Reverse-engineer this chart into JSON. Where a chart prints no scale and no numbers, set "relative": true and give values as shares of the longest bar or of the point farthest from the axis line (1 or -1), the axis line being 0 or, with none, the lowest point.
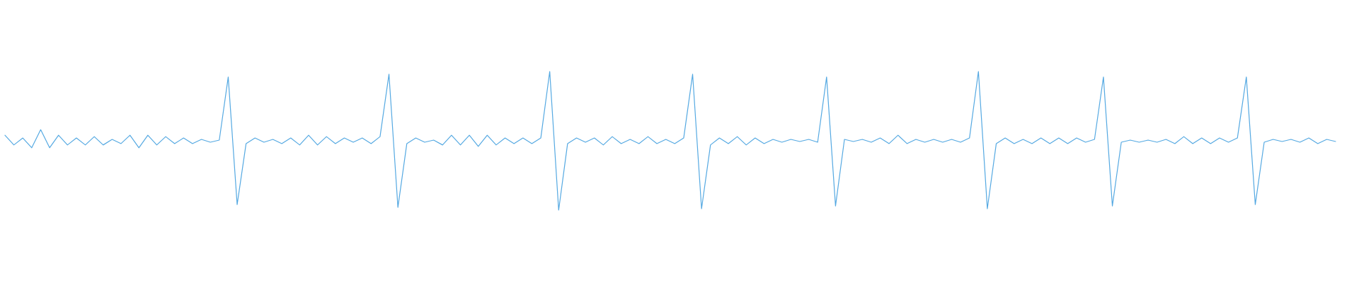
{
  "chart_data": {
    "type": "line",
    "relative": true,
    "color": "#55a9e2",
    "categories": [
      null,
      null,
      null,
      null,
      null,
      null,
      null,
      null,
      null,
      null,
      null,
      null,
      null,
      null,
      null,
      null,
      null,
      null,
      null,
      null,
      null,
      null,
      null,
      null,
      null,
      null,
      null,
      null,
      null,
      null,
      null,
      null,
      null,
      null,
      null,
      null,
      null,
      null,
      null,
      null,
      null,
      null,
      null,
      null,
      null,
      null,
      null,
      null,
      null,
      null,
      null,
      null,
      null,
      null,
      null,
      null,
      null,
      null,
      null,
      null,
      null,
      null,
      null,
      null,
      null,
      null,
      null,
      null,
      null,
      null,
      null,
      null,
      null,
      null,
      null,
      null,
      null,
      null,
      null,
      null,
      null,
      null,
      null,
      null,
      null,
      null,
      null,
      null,
      null,
      null,
      null,
      null,
      null,
      null,
      null,
      null,
      null,
      null,
      null,
      null,
      null,
      null,
      null,
      null,
      null,
      null,
      null,
      null,
      null,
      null,
      null,
      null,
      null,
      null,
      null,
      null,
      null,
      null,
      null,
      null,
      null,
      null,
      null,
      null,
      null,
      null,
      null,
      null,
      null,
      null,
      null,
      null,
      null,
      null,
      null,
      null,
      null,
      null,
      null,
      null,
      null,
      null,
      null,
      null,
      null,
      null,
      null,
      null,
      null,
      null
    ],
    "values": [
      0.54,
      0.47,
      0.52,
      0.45,
      0.58,
      0.45,
      0.54,
      0.47,
      0.52,
      0.47,
      0.53,
      0.47,
      0.51,
      0.48,
      0.54,
      0.45,
      0.54,
      0.47,
      0.53,
      0.48,
      0.52,
      0.48,
      0.51,
      0.49,
      0.505,
      0.96,
      0.04,
      0.48,
      0.52,
      0.49,
      0.51,
      0.48,
      0.52,
      0.47,
      0.54,
      0.47,
      0.53,
      0.48,
      0.52,
      0.49,
      0.52,
      0.48,
      0.53,
      0.98,
      0.02,
      0.48,
      0.52,
      0.49,
      0.505,
      0.47,
      0.54,
      0.47,
      0.54,
      0.46,
      0.54,
      0.47,
      0.52,
      0.48,
      0.52,
      0.48,
      0.52,
      1,
      0,
      0.48,
      0.52,
      0.49,
      0.52,
      0.47,
      0.53,
      0.48,
      0.51,
      0.48,
      0.53,
      0.48,
      0.51,
      0.48,
      0.52,
      0.98,
      0.01,
      0.47,
      0.52,
      0.48,
      0.53,
      0.47,
      0.52,
      0.48,
      0.51,
      0.49,
      0.51,
      0.495,
      0.51,
      0.49,
      0.96,
      0.03,
      0.51,
      0.495,
      0.51,
      0.49,
      0.52,
      0.48,
      0.54,
      0.48,
      0.51,
      0.49,
      0.51,
      0.49,
      0.51,
      0.49,
      0.52,
      1,
      0.01,
      0.48,
      0.52,
      0.48,
      0.51,
      0.48,
      0.52,
      0.48,
      0.52,
      0.48,
      0.52,
      0.49,
      0.51,
      0.96,
      0.03,
      0.49,
      0.505,
      0.49,
      0.505,
      0.49,
      0.51,
      0.48,
      0.53,
      0.48,
      0.52,
      0.48,
      0.52,
      0.49,
      0.52,
      0.96,
      0.04,
      0.49,
      0.51,
      0.495,
      0.51,
      0.49,
      0.52,
      0.48,
      0.51,
      0.495
    ]
  }
}
